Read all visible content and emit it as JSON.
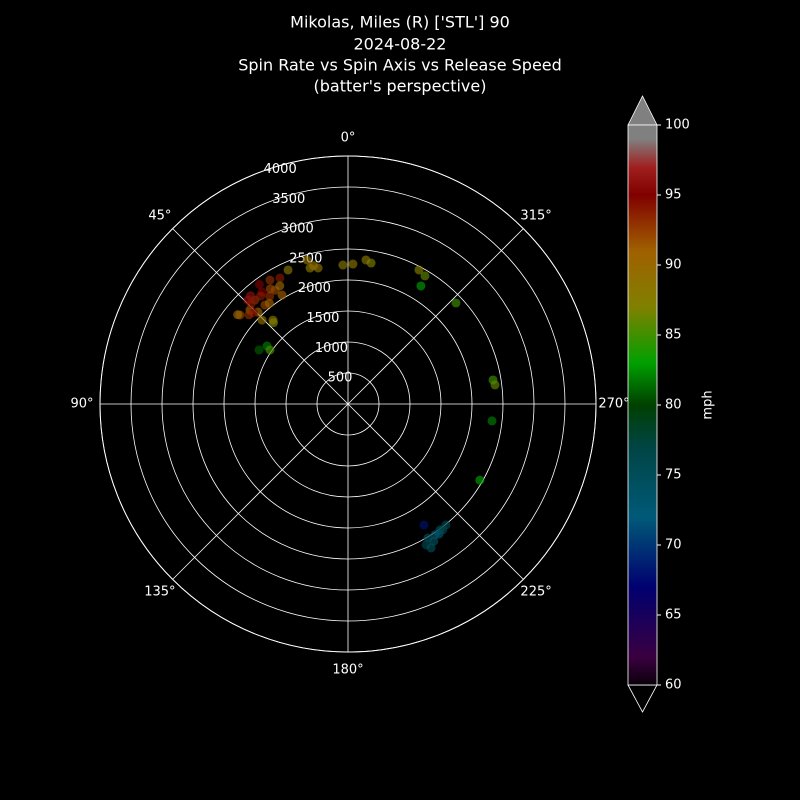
{
  "chart_data": {
    "type": "polar-scatter",
    "title": [
      "Mikolas, Miles (R) ['STL'] 90",
      "2024-08-22",
      "Spin Rate vs Spin Axis vs Release Speed",
      "(batter's perspective)"
    ],
    "theta_zero": "N",
    "theta_direction": "counterclockwise",
    "rlim": [
      0,
      4000
    ],
    "rticks": [
      500,
      1000,
      1500,
      2000,
      2500,
      3000,
      3500,
      4000
    ],
    "thetaticks": [
      {
        "value": 0,
        "label": "0°"
      },
      {
        "value": 45,
        "label": "45°"
      },
      {
        "value": 90,
        "label": "90°"
      },
      {
        "value": 135,
        "label": "135°"
      },
      {
        "value": 180,
        "label": "180°"
      },
      {
        "value": 225,
        "label": "225°"
      },
      {
        "value": 270,
        "label": "270°"
      },
      {
        "value": 315,
        "label": "315°"
      }
    ],
    "grid": true,
    "colorbar": {
      "label": "mph",
      "clim": [
        60,
        100
      ],
      "ticks": [
        60,
        65,
        70,
        75,
        80,
        85,
        90,
        95,
        100
      ],
      "colormap": [
        [
          60,
          "#0a000a"
        ],
        [
          62,
          "#3a0040"
        ],
        [
          67,
          "#000070"
        ],
        [
          72,
          "#005a78"
        ],
        [
          77,
          "#004444"
        ],
        [
          80,
          "#004000"
        ],
        [
          83,
          "#00a000"
        ],
        [
          87,
          "#808000"
        ],
        [
          91,
          "#a06000"
        ],
        [
          95,
          "#800000"
        ],
        [
          97,
          "#a02020"
        ],
        [
          99,
          "#808080"
        ],
        [
          100,
          "#808080"
        ]
      ]
    },
    "series": [
      {
        "theta": [
          32.2,
          28.4,
          32.6,
          37.5,
          41.8,
          43.9,
          46.2,
          44.4,
          40,
          50.5,
          51,
          45.7,
          41.8,
          42.5,
          31.2,
          24.1,
          36,
          39,
          46,
          42,
          34,
          38,
          44,
          48,
          30,
          36.5,
          15.9,
          15.6,
          14,
          12.4,
          2.1,
          358,
          352.9,
          350.7,
          332.1,
          329,
          328.3,
          313.1,
          279.4,
          277.4,
          263.3,
          240,
          54.4,
          58.7,
          55.3,
          212.1,
          219,
          216.1,
          213.6,
          210.8,
          209,
          210,
          215,
          212,
          217
        ],
        "r": [
          2363,
          2310,
          2180,
          2277,
          2250,
          2327,
          2190,
          2076,
          2084,
          2257,
          2290,
          1938,
          1816,
          1780,
          2055,
          2368,
          2150,
          2240,
          2120,
          2350,
          2240,
          2060,
          2250,
          2150,
          2200,
          2400,
          2415,
          2277,
          2300,
          2246,
          2243,
          2259,
          2341,
          2304,
          2446,
          2410,
          2238,
          2385,
          2371,
          2391,
          2339,
          2456,
          1607,
          1679,
          1530,
          2305,
          2511,
          2516,
          2535,
          2517,
          2598,
          2680,
          2560,
          2610,
          2540
        ],
        "speed": [
          93,
          94,
          92,
          95,
          93,
          96,
          91,
          90,
          92,
          92,
          90,
          89,
          88,
          87,
          91,
          88,
          93,
          94,
          95,
          96,
          92,
          91,
          94,
          93,
          90,
          95,
          89,
          88,
          89,
          89,
          88,
          88,
          88,
          87,
          87,
          86,
          83,
          85,
          85,
          86,
          82,
          83,
          82,
          81,
          85,
          68,
          76,
          75,
          74,
          75,
          76,
          75,
          73,
          74,
          76
        ]
      }
    ]
  }
}
